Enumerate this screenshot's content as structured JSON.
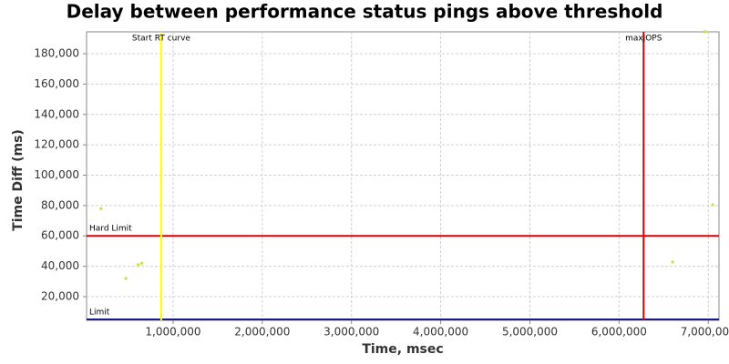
{
  "chart_data": {
    "type": "scatter",
    "title": "Delay between performance status pings above threshold",
    "x_label": "Time, msec",
    "y_label": "Time Diff (ms)",
    "color": "#cfdc4a",
    "x": [
      192000,
      470000,
      610000,
      650000,
      6600000,
      7050000,
      6960000
    ],
    "y": [
      78000,
      32000,
      41000,
      42000,
      42800,
      80500,
      194500
    ],
    "xlim": [
      30000,
      7120000
    ],
    "ylim": [
      4400,
      194400
    ],
    "xticks": [
      {
        "value": 1000000,
        "label": "1,000,000"
      },
      {
        "value": 2000000,
        "label": "2,000,000"
      },
      {
        "value": 3000000,
        "label": "3,000,000"
      },
      {
        "value": 4000000,
        "label": "4,000,000"
      },
      {
        "value": 5000000,
        "label": "5,000,000"
      },
      {
        "value": 6000000,
        "label": "6,000,000"
      },
      {
        "value": 7000000,
        "label": "7,000,000"
      }
    ],
    "yticks": [
      {
        "value": 20000,
        "label": "20,000"
      },
      {
        "value": 40000,
        "label": "40,000"
      },
      {
        "value": 60000,
        "label": "60,000"
      },
      {
        "value": 80000,
        "label": "80,000"
      },
      {
        "value": 100000,
        "label": "100,000"
      },
      {
        "value": 120000,
        "label": "120,000"
      },
      {
        "value": 140000,
        "label": "140,000"
      },
      {
        "value": 160000,
        "label": "160,000"
      },
      {
        "value": 180000,
        "label": "180,000"
      }
    ],
    "grid": true,
    "x_markers": [
      {
        "label": "Start RT curve",
        "value": 867000,
        "color": "#ffff00"
      },
      {
        "label": "maxjOPS",
        "value": 6275000,
        "color": "#e00000"
      }
    ],
    "y_markers": [
      {
        "label": "Hard Limit",
        "value": 60000,
        "color": "#e00000"
      },
      {
        "label": "Limit",
        "value": 5000,
        "color": "#1a1a8c"
      }
    ]
  }
}
